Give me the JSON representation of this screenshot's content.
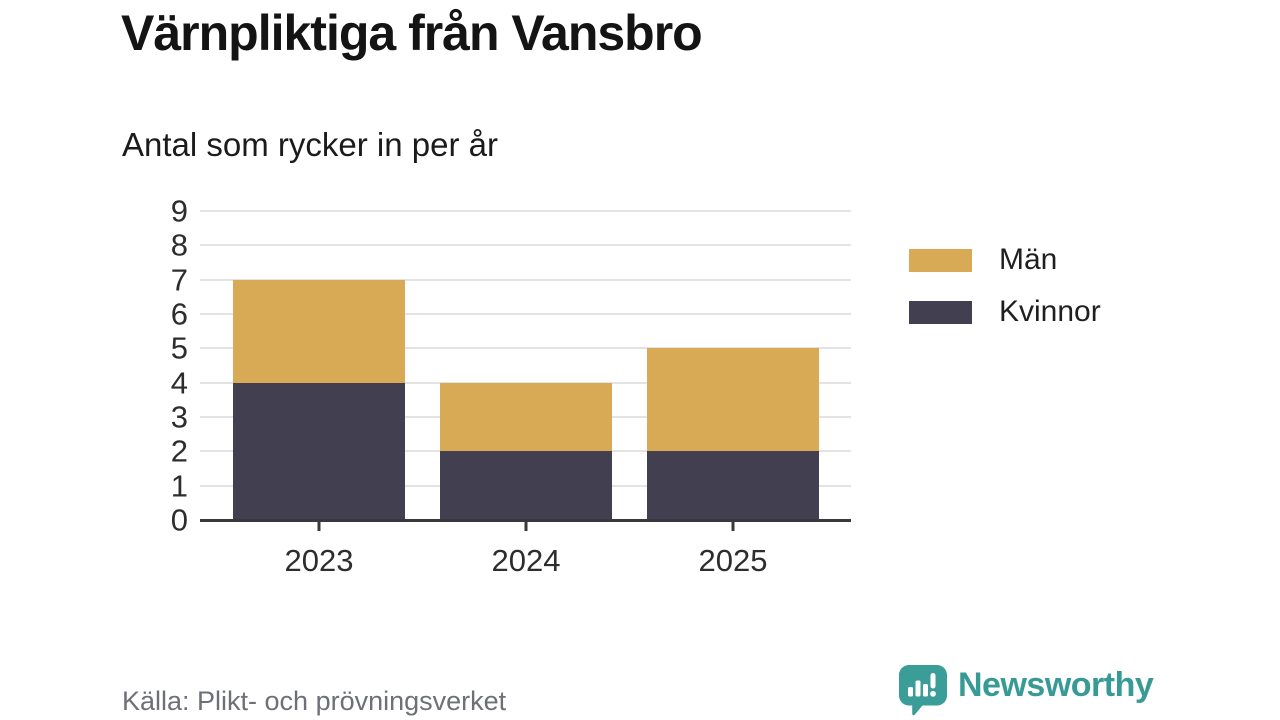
{
  "header": {
    "title": "Värnpliktiga från Vansbro",
    "subtitle": "Antal som rycker in per år"
  },
  "legend": {
    "items": [
      {
        "label": "Män",
        "color": "#d9aa55"
      },
      {
        "label": "Kvinnor",
        "color": "#413f50"
      }
    ]
  },
  "footer": {
    "source": "Källa: Plikt- och prövningsverket",
    "brand": "Newsworthy"
  },
  "colors": {
    "men": "#d9aa55",
    "women": "#413f50",
    "brand_teal": "#3a9d97",
    "gridline": "#e3e3e3",
    "axis": "#39393b",
    "source_text": "#6d7076"
  },
  "chart_data": {
    "type": "bar",
    "stacked": true,
    "title": "Värnpliktiga från Vansbro",
    "subtitle": "Antal som rycker in per år",
    "categories": [
      "2023",
      "2024",
      "2025"
    ],
    "series": [
      {
        "name": "Kvinnor",
        "color": "#413f50",
        "values": [
          4,
          2,
          2
        ]
      },
      {
        "name": "Män",
        "color": "#d9aa55",
        "values": [
          3,
          2,
          3
        ]
      }
    ],
    "totals": [
      7,
      4,
      5
    ],
    "xlabel": "",
    "ylabel": "",
    "ylim": [
      0,
      9
    ],
    "yticks": [
      0,
      1,
      2,
      3,
      4,
      5,
      6,
      7,
      8,
      9
    ],
    "grid": "horizontal",
    "legend_position": "right"
  }
}
